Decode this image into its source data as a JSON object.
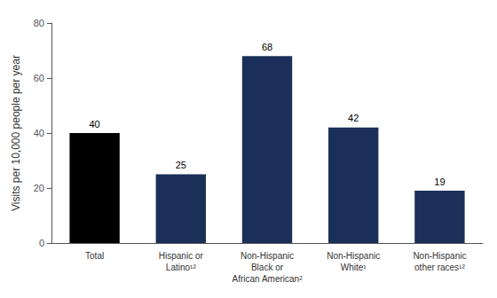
{
  "chart_data": {
    "type": "bar",
    "categories": [
      "Total",
      "Hispanic or\nLatino¹²",
      "Non-Hispanic\nBlack or\nAfrican American²",
      "Non-Hispanic\nWhite¹",
      "Non-Hispanic\nother races¹²"
    ],
    "values": [
      40,
      25,
      68,
      42,
      19
    ],
    "colors": [
      "#000000",
      "#1b3058",
      "#1b3058",
      "#1b3058",
      "#1b3058"
    ],
    "ylabel": "Visits per 10,000 people per year",
    "ylim": [
      0,
      80
    ],
    "yticks": [
      0,
      20,
      40,
      60,
      80
    ],
    "grid": false,
    "data_labels": true
  }
}
